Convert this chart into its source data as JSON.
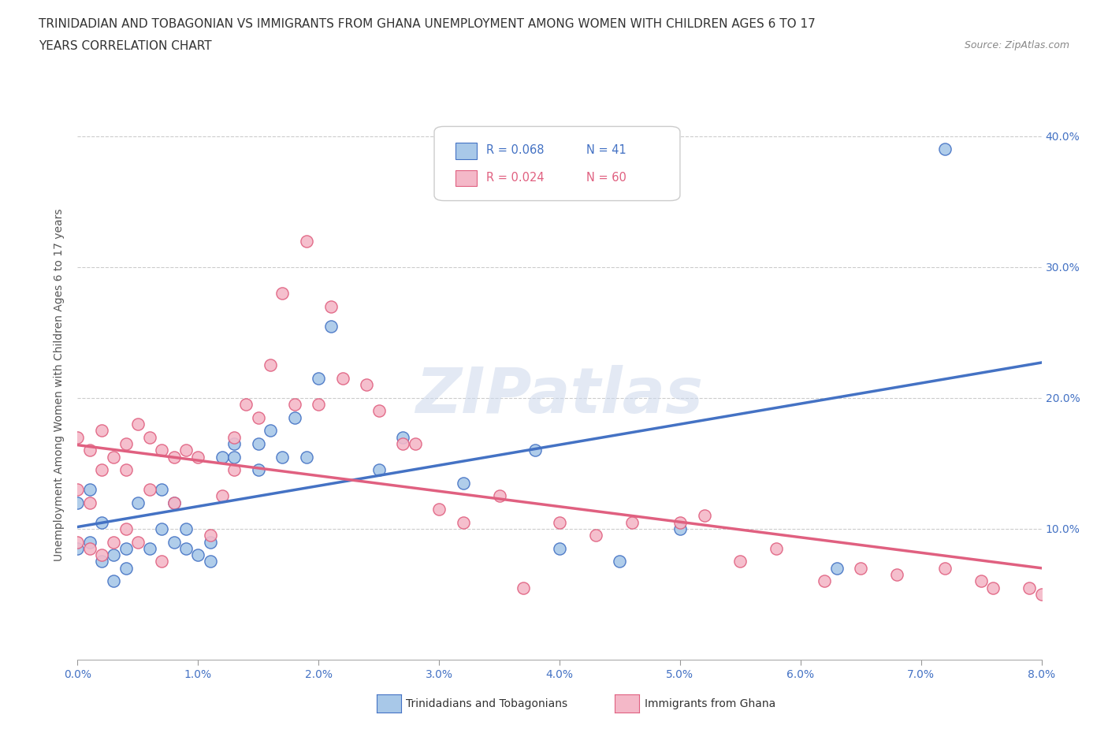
{
  "title_line1": "TRINIDADIAN AND TOBAGONIAN VS IMMIGRANTS FROM GHANA UNEMPLOYMENT AMONG WOMEN WITH CHILDREN AGES 6 TO 17",
  "title_line2": "YEARS CORRELATION CHART",
  "source_text": "Source: ZipAtlas.com",
  "xlabel_ticks": [
    "0.0%",
    "1.0%",
    "2.0%",
    "3.0%",
    "4.0%",
    "5.0%",
    "6.0%",
    "7.0%",
    "8.0%"
  ],
  "ylabel": "Unemployment Among Women with Children Ages 6 to 17 years",
  "ylabel_ticks": [
    "10.0%",
    "20.0%",
    "30.0%",
    "40.0%"
  ],
  "xlim": [
    0.0,
    0.08
  ],
  "ylim": [
    0.0,
    0.42
  ],
  "watermark": "ZIPatlas",
  "legend_r1": "R = 0.068",
  "legend_n1": "N = 41",
  "legend_r2": "R = 0.024",
  "legend_n2": "N = 60",
  "color_blue": "#a8c8e8",
  "color_pink": "#f4b8c8",
  "color_blue_line": "#4472c4",
  "color_pink_line": "#e06080",
  "grid_color": "#cccccc",
  "background_color": "#ffffff",
  "title_fontsize": 11,
  "axis_tick_fontsize": 10,
  "ylabel_fontsize": 10,
  "blue_scatter_x": [
    0.0,
    0.0,
    0.001,
    0.001,
    0.002,
    0.002,
    0.003,
    0.003,
    0.004,
    0.004,
    0.005,
    0.006,
    0.007,
    0.007,
    0.008,
    0.008,
    0.009,
    0.009,
    0.01,
    0.011,
    0.011,
    0.012,
    0.013,
    0.013,
    0.015,
    0.015,
    0.016,
    0.017,
    0.018,
    0.019,
    0.02,
    0.021,
    0.025,
    0.027,
    0.032,
    0.038,
    0.04,
    0.045,
    0.05,
    0.063,
    0.072
  ],
  "blue_scatter_y": [
    0.12,
    0.085,
    0.13,
    0.09,
    0.105,
    0.075,
    0.08,
    0.06,
    0.085,
    0.07,
    0.12,
    0.085,
    0.13,
    0.1,
    0.09,
    0.12,
    0.085,
    0.1,
    0.08,
    0.075,
    0.09,
    0.155,
    0.165,
    0.155,
    0.165,
    0.145,
    0.175,
    0.155,
    0.185,
    0.155,
    0.215,
    0.255,
    0.145,
    0.17,
    0.135,
    0.16,
    0.085,
    0.075,
    0.1,
    0.07,
    0.39
  ],
  "pink_scatter_x": [
    0.0,
    0.0,
    0.0,
    0.001,
    0.001,
    0.001,
    0.002,
    0.002,
    0.002,
    0.003,
    0.003,
    0.004,
    0.004,
    0.004,
    0.005,
    0.005,
    0.006,
    0.006,
    0.007,
    0.007,
    0.008,
    0.008,
    0.009,
    0.01,
    0.011,
    0.012,
    0.013,
    0.013,
    0.014,
    0.015,
    0.016,
    0.017,
    0.018,
    0.019,
    0.02,
    0.021,
    0.022,
    0.024,
    0.025,
    0.027,
    0.028,
    0.03,
    0.032,
    0.035,
    0.037,
    0.04,
    0.043,
    0.046,
    0.05,
    0.052,
    0.055,
    0.058,
    0.062,
    0.065,
    0.068,
    0.072,
    0.075,
    0.076,
    0.079,
    0.08
  ],
  "pink_scatter_y": [
    0.17,
    0.13,
    0.09,
    0.16,
    0.12,
    0.085,
    0.175,
    0.145,
    0.08,
    0.155,
    0.09,
    0.165,
    0.145,
    0.1,
    0.18,
    0.09,
    0.17,
    0.13,
    0.16,
    0.075,
    0.155,
    0.12,
    0.16,
    0.155,
    0.095,
    0.125,
    0.17,
    0.145,
    0.195,
    0.185,
    0.225,
    0.28,
    0.195,
    0.32,
    0.195,
    0.27,
    0.215,
    0.21,
    0.19,
    0.165,
    0.165,
    0.115,
    0.105,
    0.125,
    0.055,
    0.105,
    0.095,
    0.105,
    0.105,
    0.11,
    0.075,
    0.085,
    0.06,
    0.07,
    0.065,
    0.07,
    0.06,
    0.055,
    0.055,
    0.05
  ]
}
